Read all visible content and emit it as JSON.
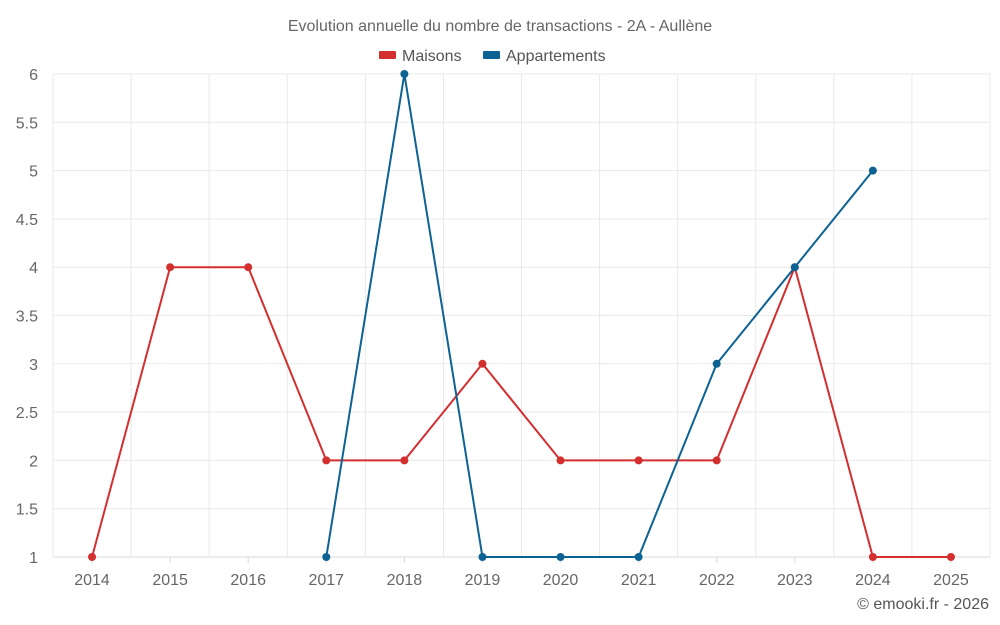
{
  "chart_data": {
    "type": "line",
    "title": "Evolution annuelle du nombre de transactions - 2A - Aullène",
    "categories": [
      "2014",
      "2015",
      "2016",
      "2017",
      "2018",
      "2019",
      "2020",
      "2021",
      "2022",
      "2023",
      "2024",
      "2025"
    ],
    "ylim": [
      1,
      6
    ],
    "yticks": [
      1,
      1.5,
      2,
      2.5,
      3,
      3.5,
      4,
      4.5,
      5,
      5.5,
      6
    ],
    "ytick_labels": [
      "1",
      "1.5",
      "2",
      "2.5",
      "3",
      "3.5",
      "4",
      "4.5",
      "5",
      "5.5",
      "6"
    ],
    "grid": true,
    "legend_position": "top-center",
    "series": [
      {
        "name": "Maisons",
        "color": "#d32f2f",
        "values": [
          1,
          4,
          4,
          2,
          2,
          3,
          2,
          2,
          2,
          4,
          1,
          1
        ]
      },
      {
        "name": "Appartements",
        "color": "#0d6294",
        "values": [
          null,
          null,
          null,
          1,
          6,
          1,
          1,
          1,
          3,
          4,
          5,
          null
        ]
      }
    ],
    "credit": "© emooki.fr - 2026"
  }
}
